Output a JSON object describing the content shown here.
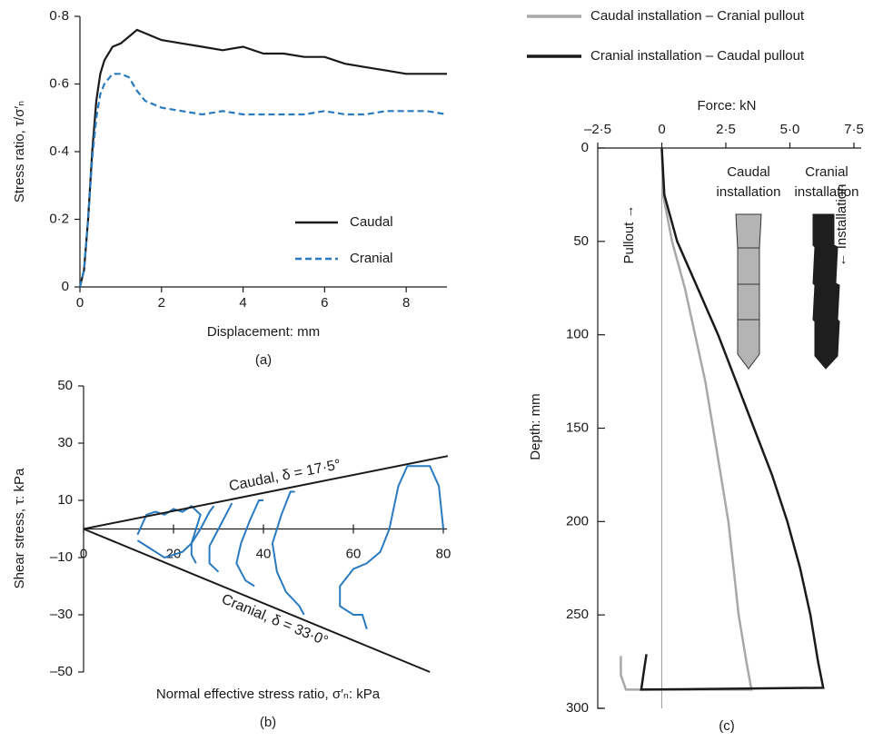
{
  "chart_data": [
    {
      "type": "line",
      "caption": "(a)",
      "xlabel": "Displacement: mm",
      "ylabel": "Stress ratio, τ/σ′ₙ",
      "xlim": [
        0,
        9
      ],
      "ylim": [
        0,
        0.8
      ],
      "xticks": [
        0,
        2,
        4,
        6,
        8
      ],
      "yticks": [
        0,
        {
          "value": 0.2,
          "label": "0·2"
        },
        {
          "value": 0.4,
          "label": "0·4"
        },
        {
          "value": 0.6,
          "label": "0·6"
        },
        {
          "value": 0.8,
          "label": "0·8"
        }
      ],
      "x": [
        0,
        0.1,
        0.2,
        0.3,
        0.4,
        0.5,
        0.6,
        0.8,
        1.0,
        1.2,
        1.4,
        1.6,
        1.8,
        2,
        2.5,
        3,
        3.5,
        4,
        4.5,
        5,
        5.5,
        6,
        6.5,
        7,
        7.5,
        8,
        8.5,
        9
      ],
      "series": [
        {
          "name": "Caudal",
          "color": "#1a1a1a",
          "line_style": "solid",
          "values": [
            0,
            0.05,
            0.2,
            0.4,
            0.55,
            0.63,
            0.67,
            0.71,
            0.72,
            0.74,
            0.76,
            0.75,
            0.74,
            0.73,
            0.72,
            0.71,
            0.7,
            0.71,
            0.69,
            0.69,
            0.68,
            0.68,
            0.66,
            0.65,
            0.64,
            0.63,
            0.63,
            0.63
          ]
        },
        {
          "name": "Cranial",
          "color": "#2a7ac0",
          "line_style": "dashed",
          "values": [
            0,
            0.05,
            0.2,
            0.38,
            0.5,
            0.57,
            0.6,
            0.63,
            0.63,
            0.62,
            0.58,
            0.55,
            0.54,
            0.53,
            0.52,
            0.51,
            0.52,
            0.51,
            0.51,
            0.51,
            0.51,
            0.52,
            0.51,
            0.51,
            0.52,
            0.52,
            0.52,
            0.51
          ]
        }
      ]
    },
    {
      "type": "curves",
      "caption": "(b)",
      "xlabel": "Normal effective stress ratio, σ′ₙ: kPa",
      "ylabel": "Shear stress, τ: kPa",
      "xlim": [
        0,
        80
      ],
      "ylim": [
        -50,
        50
      ],
      "xticks": [
        0,
        20,
        40,
        60,
        80
      ],
      "yticks": [
        50,
        30,
        10,
        {
          "value": -10,
          "label": "–10"
        },
        {
          "value": -30,
          "label": "–30"
        },
        {
          "value": -50,
          "label": "–50"
        }
      ],
      "color": "#2a7ac0",
      "envelopes": [
        {
          "label": "Caudal, δ = 17·5°",
          "x": [
            0,
            81
          ],
          "y": [
            0,
            25.5
          ]
        },
        {
          "label": "Cranial, δ = 33·0°",
          "x": [
            0,
            77
          ],
          "y": [
            0,
            -50
          ]
        }
      ],
      "curves": [
        {
          "x": [
            80,
            79,
            77,
            72,
            70,
            68,
            66,
            63,
            60,
            57,
            57,
            60,
            62,
            63
          ],
          "y": [
            0,
            15,
            22,
            22,
            15,
            0,
            -8,
            -12,
            -14,
            -20,
            -27,
            -30,
            -30,
            -35
          ]
        },
        {
          "x": [
            47,
            46,
            44,
            42,
            43,
            45,
            48,
            49
          ],
          "y": [
            13,
            13,
            5,
            -5,
            -15,
            -22,
            -27,
            -30
          ]
        },
        {
          "x": [
            40,
            39,
            37,
            35,
            34,
            36,
            38
          ],
          "y": [
            10,
            10,
            3,
            -5,
            -12,
            -18,
            -20
          ]
        },
        {
          "x": [
            33,
            32,
            30,
            28,
            28,
            30
          ],
          "y": [
            9,
            6,
            0,
            -6,
            -12,
            -15
          ]
        },
        {
          "x": [
            29,
            28,
            26,
            24,
            24,
            25
          ],
          "y": [
            8,
            6,
            0,
            -5,
            -9,
            -12
          ]
        },
        {
          "x": [
            12,
            14,
            16,
            18,
            20,
            22,
            24,
            26,
            24,
            22,
            20,
            18,
            16,
            14,
            12
          ],
          "y": [
            -2,
            5,
            6,
            5,
            7,
            6,
            8,
            5,
            -5,
            -8,
            -9,
            -10,
            -8,
            -6,
            -4
          ]
        }
      ]
    },
    {
      "type": "profile",
      "caption": "(c)",
      "xlabel": "Force: kN",
      "ylabel": "Depth: mm",
      "xlim": [
        -2.5,
        7.5
      ],
      "ylim": [
        0,
        300
      ],
      "y_inverted": true,
      "xticks": [
        {
          "value": -2.5,
          "label": "–2·5"
        },
        0,
        {
          "value": 2.5,
          "label": "2·5"
        },
        {
          "value": 5,
          "label": "5·0"
        },
        {
          "value": 7.5,
          "label": "7·5"
        }
      ],
      "yticks": [
        0,
        50,
        100,
        150,
        200,
        250,
        300
      ],
      "annotations": [
        "Caudal installation",
        "Cranial installation",
        "Pullout →",
        "← Installation"
      ],
      "series": [
        {
          "name": "Caudal installation – Cranial pullout",
          "color": "#a8a8a8",
          "x": [
            0,
            0.05,
            0.4,
            0.9,
            1.3,
            1.7,
            2.0,
            2.3,
            2.6,
            2.8,
            3.0,
            3.3,
            3.5,
            -1.4,
            -1.6,
            -1.6
          ],
          "y": [
            0,
            25,
            50,
            75,
            100,
            125,
            150,
            175,
            200,
            225,
            250,
            275,
            290,
            290,
            282,
            272
          ]
        },
        {
          "name": "Cranial installation – Caudal pullout",
          "color": "#1a1a1a",
          "x": [
            0,
            0.1,
            0.6,
            1.4,
            2.2,
            2.9,
            3.6,
            4.3,
            4.9,
            5.4,
            5.8,
            6.1,
            6.3,
            -0.8,
            -0.7,
            -0.6
          ],
          "y": [
            0,
            25,
            50,
            75,
            100,
            125,
            150,
            175,
            200,
            225,
            250,
            275,
            289,
            290,
            280,
            271
          ]
        }
      ]
    }
  ]
}
